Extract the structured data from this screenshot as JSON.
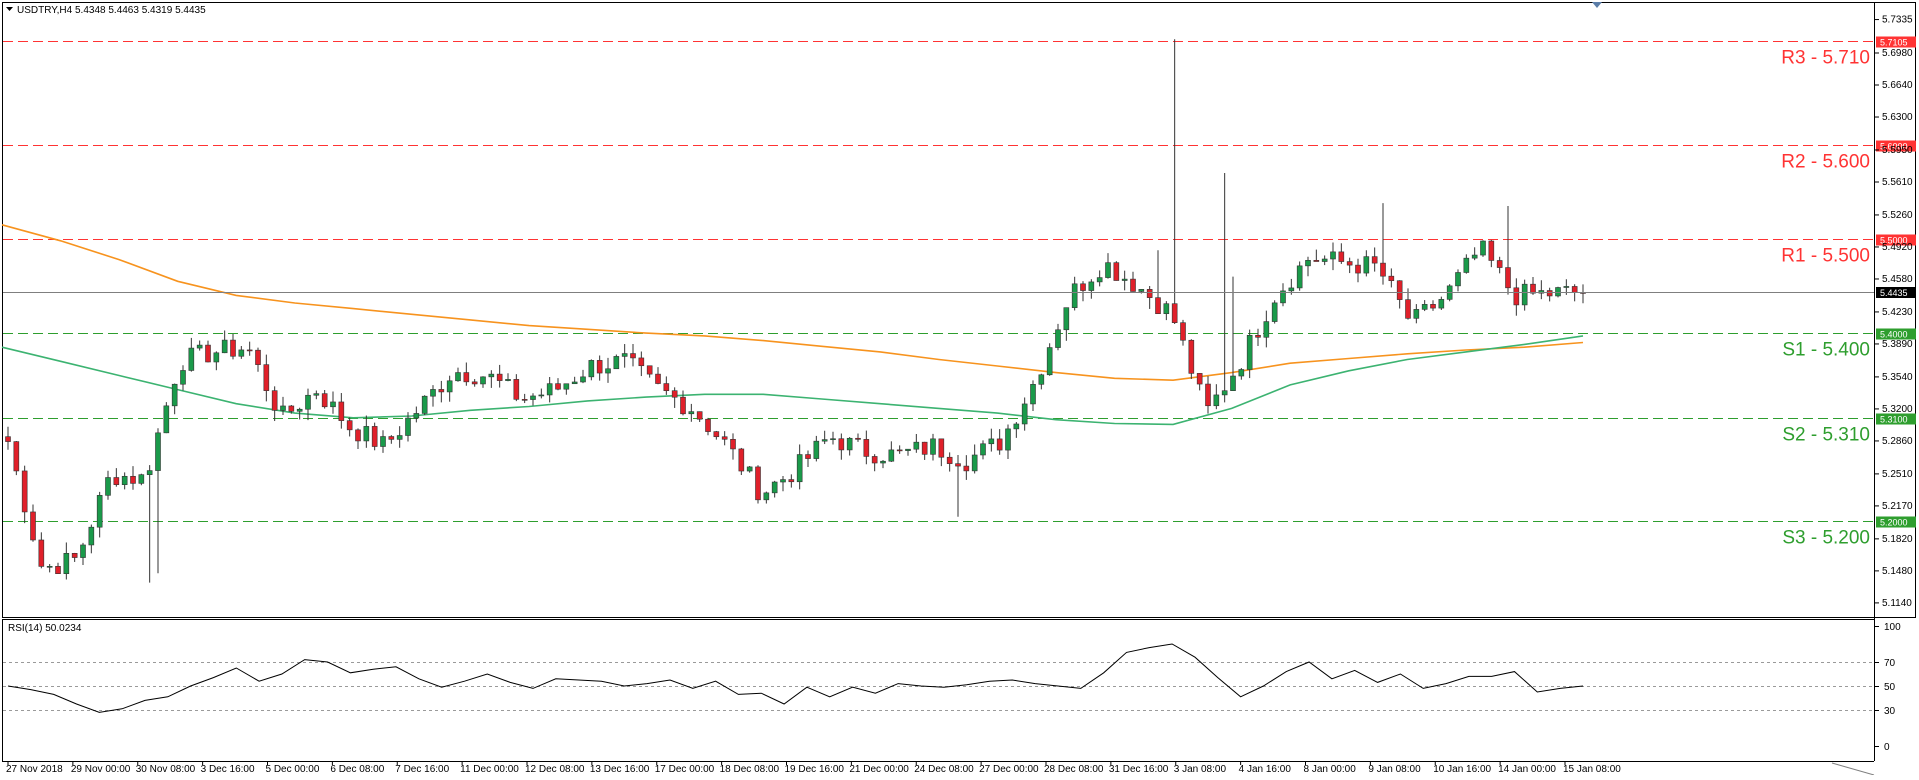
{
  "colors": {
    "background": "#ffffff",
    "resistance": "#ff3333",
    "support": "#2e9e2e",
    "bull": "#1a9a4a",
    "bear": "#e0202a",
    "wick": "#333333",
    "ma_orange": "#f7931e",
    "ma_green": "#3cb371",
    "price_line": "#7f7f7f",
    "frame": "#000000",
    "support_tag_text": "#ffffff"
  },
  "icons": {
    "corner_marker": "triangle-down-icon"
  },
  "chart_data": [
    {
      "type": "candlestick",
      "title": "USDTRY,H4  5.4348 5.4463 5.4319 5.4435",
      "y_ticks": [
        "5.7335",
        "5.6980",
        "5.6640",
        "5.6300",
        "5.5950",
        "5.5610",
        "5.5260",
        "5.4920",
        "5.4580",
        "5.4230",
        "5.3890",
        "5.3540",
        "5.3200",
        "5.2860",
        "5.2510",
        "5.2170",
        "5.1820",
        "5.1480",
        "5.1140"
      ],
      "ylim": [
        5.1038,
        5.7325
      ],
      "x_ticks": [
        "27 Nov 2018",
        "29 Nov 00:00",
        "30 Nov 08:00",
        "3 Dec 16:00",
        "5 Dec 00:00",
        "6 Dec 08:00",
        "7 Dec 16:00",
        "11 Dec 00:00",
        "12 Dec 08:00",
        "13 Dec 16:00",
        "17 Dec 00:00",
        "18 Dec 08:00",
        "19 Dec 16:00",
        "21 Dec 00:00",
        "24 Dec 08:00",
        "27 Dec 00:00",
        "28 Dec 08:00",
        "31 Dec 16:00",
        "3 Jan 08:00",
        "4 Jan 16:00",
        "8 Jan 00:00",
        "9 Jan 08:00",
        "10 Jan 16:00",
        "14 Jan 00:00",
        "15 Jan 08:00"
      ],
      "current_price": "5.4435",
      "levels": [
        {
          "label": "R3 - 5.710",
          "tag": "5.7105",
          "value": 5.7105,
          "kind": "resistance"
        },
        {
          "label": "R2 - 5.600",
          "tag": "5.6000",
          "value": 5.6,
          "kind": "resistance"
        },
        {
          "label": "R1 - 5.500",
          "tag": "5.5000",
          "value": 5.5,
          "kind": "resistance"
        },
        {
          "label": "S1 - 5.400",
          "tag": "5.4000",
          "value": 5.4,
          "kind": "support"
        },
        {
          "label": "S2 - 5.310",
          "tag": "5.3100",
          "value": 5.31,
          "kind": "support"
        },
        {
          "label": "S3 - 5.200",
          "tag": "5.2000",
          "value": 5.2,
          "kind": "support"
        }
      ],
      "key_closes": [
        {
          "x": "27 Nov 2018",
          "y": 5.285
        },
        {
          "x": "29 Nov 00:00",
          "y": 5.15
        },
        {
          "x": "29 Nov 16:00",
          "y": 5.16
        },
        {
          "x": "30 Nov 08:00",
          "y": 5.25
        },
        {
          "x": "3 Dec 00:00",
          "y": 5.245
        },
        {
          "x": "3 Dec 16:00",
          "y": 5.37
        },
        {
          "x": "4 Dec 08:00",
          "y": 5.38
        },
        {
          "x": "5 Dec 00:00",
          "y": 5.385
        },
        {
          "x": "5 Dec 08:00",
          "y": 5.31
        },
        {
          "x": "6 Dec 08:00",
          "y": 5.34
        },
        {
          "x": "7 Dec 08:00",
          "y": 5.3
        },
        {
          "x": "7 Dec 16:00",
          "y": 5.28
        },
        {
          "x": "10 Dec 16:00",
          "y": 5.32
        },
        {
          "x": "11 Dec 00:00",
          "y": 5.36
        },
        {
          "x": "12 Dec 08:00",
          "y": 5.355
        },
        {
          "x": "13 Dec 08:00",
          "y": 5.33
        },
        {
          "x": "13 Dec 16:00",
          "y": 5.34
        },
        {
          "x": "14 Dec 16:00",
          "y": 5.365
        },
        {
          "x": "17 Dec 00:00",
          "y": 5.37
        },
        {
          "x": "18 Dec 08:00",
          "y": 5.34
        },
        {
          "x": "18 Dec 20:00",
          "y": 5.32
        },
        {
          "x": "19 Dec 04:00",
          "y": 5.28
        },
        {
          "x": "19 Dec 16:00",
          "y": 5.23
        },
        {
          "x": "20 Dec 16:00",
          "y": 5.255
        },
        {
          "x": "21 Dec 00:00",
          "y": 5.29
        },
        {
          "x": "24 Dec 08:00",
          "y": 5.275
        },
        {
          "x": "26 Dec 08:00",
          "y": 5.27
        },
        {
          "x": "27 Dec 00:00",
          "y": 5.28
        },
        {
          "x": "28 Dec 08:00",
          "y": 5.265
        },
        {
          "x": "31 Dec 08:00",
          "y": 5.285
        },
        {
          "x": "31 Dec 16:00",
          "y": 5.35
        },
        {
          "x": "2 Jan 16:00",
          "y": 5.44
        },
        {
          "x": "3 Jan 00:00",
          "y": 5.475
        },
        {
          "x": "3 Jan 08:00",
          "y": 5.45
        },
        {
          "x": "4 Jan 00:00",
          "y": 5.42
        },
        {
          "x": "4 Jan 16:00",
          "y": 5.315
        },
        {
          "x": "7 Jan 08:00",
          "y": 5.37
        },
        {
          "x": "8 Jan 00:00",
          "y": 5.44
        },
        {
          "x": "8 Jan 16:00",
          "y": 5.48
        },
        {
          "x": "9 Jan 08:00",
          "y": 5.475
        },
        {
          "x": "9 Jan 20:00",
          "y": 5.47
        },
        {
          "x": "10 Jan 16:00",
          "y": 5.41
        },
        {
          "x": "11 Jan 08:00",
          "y": 5.44
        },
        {
          "x": "14 Jan 00:00",
          "y": 5.49
        },
        {
          "x": "14 Jan 08:00",
          "y": 5.44
        },
        {
          "x": "15 Jan 08:00",
          "y": 5.442
        },
        {
          "x": "15 Jan 16:00",
          "y": 5.4435
        }
      ],
      "moving_averages": [
        {
          "role": "orange",
          "points": [
            5.515,
            5.498,
            5.478,
            5.455,
            5.44,
            5.432,
            5.426,
            5.42,
            5.414,
            5.408,
            5.404,
            5.4,
            5.397,
            5.392,
            5.386,
            5.38,
            5.372,
            5.365,
            5.358,
            5.352,
            5.35,
            5.358,
            5.368,
            5.373,
            5.378,
            5.382,
            5.385,
            5.39
          ]
        },
        {
          "role": "green",
          "points": [
            5.385,
            5.37,
            5.355,
            5.34,
            5.325,
            5.315,
            5.31,
            5.312,
            5.318,
            5.322,
            5.328,
            5.332,
            5.335,
            5.335,
            5.33,
            5.325,
            5.32,
            5.315,
            5.308,
            5.304,
            5.303,
            5.32,
            5.345,
            5.36,
            5.372,
            5.38,
            5.388,
            5.397
          ]
        }
      ]
    },
    {
      "type": "line",
      "title": "RSI(14) 50.0234",
      "y_ticks": [
        "100",
        "70",
        "50",
        "30",
        "0"
      ],
      "ylim": [
        0,
        100
      ],
      "values": [
        50,
        47,
        43,
        35,
        28,
        31,
        38,
        41,
        50,
        57,
        65,
        54,
        60,
        72,
        70,
        61,
        64,
        66,
        56,
        49,
        54,
        60,
        53,
        48,
        56,
        55,
        54,
        50,
        52,
        55,
        48,
        54,
        43,
        44,
        35,
        49,
        41,
        49,
        44,
        52,
        50,
        49,
        51,
        54,
        55,
        52,
        50,
        48,
        61,
        78,
        82,
        85,
        74,
        57,
        41,
        50,
        62,
        70,
        56,
        63,
        53,
        60,
        48,
        52,
        58,
        58,
        62,
        45,
        48,
        50
      ]
    }
  ]
}
